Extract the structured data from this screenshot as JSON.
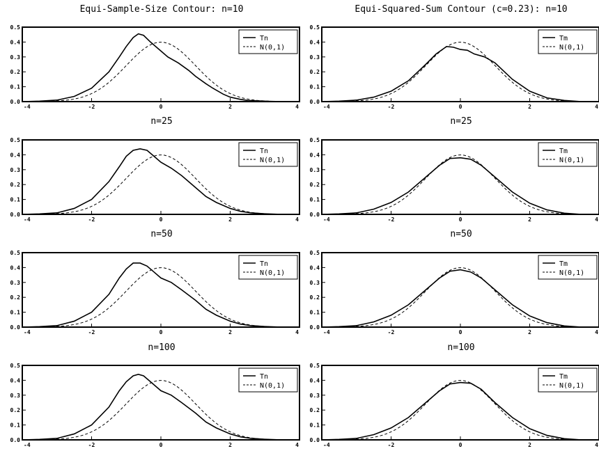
{
  "colors": {
    "background": "#ffffff",
    "ink": "#000000"
  },
  "chart_data": [
    {
      "type": "line",
      "title": "Equi-Sample-Size Contour: n=10",
      "xlim": [
        -4,
        4
      ],
      "ylim": [
        0,
        0.5
      ],
      "xticks": [
        "-4",
        "-2",
        "0",
        "2",
        "4"
      ],
      "yticks": [
        "0.0",
        "0.1",
        "0.2",
        "0.3",
        "0.4",
        "0.5"
      ],
      "legend": [
        "Tn",
        "N(0,1)"
      ],
      "legend_position": "top-right",
      "grid": false,
      "series": [
        {
          "name": "Tn",
          "style": "solid",
          "x": [
            -4,
            -3.5,
            -3,
            -2.5,
            -2,
            -1.5,
            -1.2,
            -1,
            -0.8,
            -0.65,
            -0.5,
            -0.3,
            -0.1,
            0,
            0.2,
            0.5,
            0.8,
            1,
            1.3,
            1.5,
            1.8,
            2,
            2.3,
            2.5,
            3,
            3.5
          ],
          "y": [
            0.0,
            0.003,
            0.01,
            0.035,
            0.09,
            0.2,
            0.3,
            0.37,
            0.43,
            0.455,
            0.445,
            0.4,
            0.36,
            0.34,
            0.3,
            0.26,
            0.21,
            0.17,
            0.12,
            0.09,
            0.05,
            0.03,
            0.015,
            0.008,
            0.003,
            0.0
          ]
        },
        {
          "name": "N(0,1)",
          "style": "dashed",
          "x_range": [
            -4,
            4
          ],
          "function": "standard-normal-pdf"
        }
      ]
    },
    {
      "type": "line",
      "title": "Equi-Squared-Sum Contour (c=0.23): n=10",
      "xlim": [
        -4,
        4
      ],
      "ylim": [
        0,
        0.5
      ],
      "xticks": [
        "-4",
        "-2",
        "0",
        "2",
        "4"
      ],
      "yticks": [
        "0.0",
        "0.1",
        "0.2",
        "0.3",
        "0.4",
        "0.5"
      ],
      "legend": [
        "Tm",
        "N(0,1)"
      ],
      "legend_position": "top-right",
      "grid": false,
      "series": [
        {
          "name": "Tm",
          "style": "solid",
          "x": [
            -4,
            -3.5,
            -3,
            -2.5,
            -2,
            -1.5,
            -1,
            -0.7,
            -0.4,
            -0.2,
            0,
            0.2,
            0.4,
            0.7,
            1,
            1.5,
            2,
            2.5,
            3,
            3.5
          ],
          "y": [
            0.0,
            0.003,
            0.01,
            0.03,
            0.07,
            0.14,
            0.25,
            0.32,
            0.37,
            0.365,
            0.35,
            0.345,
            0.32,
            0.3,
            0.26,
            0.15,
            0.07,
            0.025,
            0.008,
            0.0
          ]
        },
        {
          "name": "N(0,1)",
          "style": "dashed",
          "x_range": [
            -4,
            4
          ],
          "function": "standard-normal-pdf"
        }
      ]
    },
    {
      "type": "line",
      "title": "n=25",
      "xlim": [
        -4,
        4
      ],
      "ylim": [
        0,
        0.5
      ],
      "xticks": [
        "-4",
        "-2",
        "0",
        "2",
        "4"
      ],
      "yticks": [
        "0.0",
        "0.1",
        "0.2",
        "0.3",
        "0.4",
        "0.5"
      ],
      "legend": [
        "Tn",
        "N(0,1)"
      ],
      "legend_position": "top-right",
      "grid": false,
      "series": [
        {
          "name": "Tn",
          "style": "solid",
          "x": [
            -4,
            -3.5,
            -3,
            -2.5,
            -2,
            -1.5,
            -1.2,
            -1,
            -0.8,
            -0.6,
            -0.4,
            -0.2,
            0,
            0.3,
            0.6,
            1,
            1.3,
            1.6,
            2,
            2.3,
            2.6,
            3,
            3.5
          ],
          "y": [
            0.0,
            0.003,
            0.01,
            0.04,
            0.1,
            0.22,
            0.32,
            0.39,
            0.43,
            0.44,
            0.43,
            0.39,
            0.35,
            0.31,
            0.26,
            0.18,
            0.12,
            0.08,
            0.04,
            0.02,
            0.01,
            0.004,
            0.0
          ]
        },
        {
          "name": "N(0,1)",
          "style": "dashed",
          "x_range": [
            -4,
            4
          ],
          "function": "standard-normal-pdf"
        }
      ]
    },
    {
      "type": "line",
      "title": "n=25",
      "xlim": [
        -4,
        4
      ],
      "ylim": [
        0,
        0.5
      ],
      "xticks": [
        "-4",
        "-2",
        "0",
        "2",
        "4"
      ],
      "yticks": [
        "0.0",
        "0.1",
        "0.2",
        "0.3",
        "0.4",
        "0.5"
      ],
      "legend": [
        "Tm",
        "N(0,1)"
      ],
      "legend_position": "top-right",
      "grid": false,
      "series": [
        {
          "name": "Tm",
          "style": "solid",
          "x": [
            -4,
            -3.5,
            -3,
            -2.5,
            -2,
            -1.5,
            -1,
            -0.6,
            -0.3,
            0,
            0.3,
            0.6,
            1,
            1.5,
            2,
            2.5,
            3,
            3.5
          ],
          "y": [
            0.0,
            0.003,
            0.01,
            0.035,
            0.08,
            0.15,
            0.25,
            0.33,
            0.375,
            0.38,
            0.37,
            0.33,
            0.25,
            0.15,
            0.075,
            0.03,
            0.008,
            0.0
          ]
        },
        {
          "name": "N(0,1)",
          "style": "dashed",
          "x_range": [
            -4,
            4
          ],
          "function": "standard-normal-pdf"
        }
      ]
    },
    {
      "type": "line",
      "title": "n=50",
      "xlim": [
        -4,
        4
      ],
      "ylim": [
        0,
        0.5
      ],
      "xticks": [
        "-4",
        "-2",
        "0",
        "2",
        "4"
      ],
      "yticks": [
        "0.0",
        "0.1",
        "0.2",
        "0.3",
        "0.4",
        "0.5"
      ],
      "legend": [
        "Tn",
        "N(0,1)"
      ],
      "legend_position": "top-right",
      "grid": false,
      "series": [
        {
          "name": "Tn",
          "style": "solid",
          "x": [
            -4,
            -3.5,
            -3,
            -2.5,
            -2,
            -1.5,
            -1.2,
            -1,
            -0.8,
            -0.6,
            -0.4,
            -0.2,
            0,
            0.3,
            0.6,
            1,
            1.3,
            1.6,
            2,
            2.3,
            2.6,
            3,
            3.5
          ],
          "y": [
            0.0,
            0.003,
            0.01,
            0.04,
            0.1,
            0.22,
            0.33,
            0.39,
            0.43,
            0.43,
            0.41,
            0.37,
            0.33,
            0.3,
            0.25,
            0.18,
            0.12,
            0.08,
            0.04,
            0.02,
            0.01,
            0.004,
            0.0
          ]
        },
        {
          "name": "N(0,1)",
          "style": "dashed",
          "x_range": [
            -4,
            4
          ],
          "function": "standard-normal-pdf"
        }
      ]
    },
    {
      "type": "line",
      "title": "n=50",
      "xlim": [
        -4,
        4
      ],
      "ylim": [
        0,
        0.5
      ],
      "xticks": [
        "-4",
        "-2",
        "0",
        "2",
        "4"
      ],
      "yticks": [
        "0.0",
        "0.1",
        "0.2",
        "0.3",
        "0.4",
        "0.5"
      ],
      "legend": [
        "Tm",
        "N(0,1)"
      ],
      "legend_position": "top-right",
      "grid": false,
      "series": [
        {
          "name": "Tm",
          "style": "solid",
          "x": [
            -4,
            -3.5,
            -3,
            -2.5,
            -2,
            -1.5,
            -1,
            -0.6,
            -0.3,
            0,
            0.3,
            0.6,
            1,
            1.5,
            2,
            2.5,
            3,
            3.5
          ],
          "y": [
            0.0,
            0.003,
            0.01,
            0.035,
            0.08,
            0.15,
            0.25,
            0.33,
            0.375,
            0.385,
            0.37,
            0.33,
            0.25,
            0.15,
            0.075,
            0.03,
            0.008,
            0.0
          ]
        },
        {
          "name": "N(0,1)",
          "style": "dashed",
          "x_range": [
            -4,
            4
          ],
          "function": "standard-normal-pdf"
        }
      ]
    },
    {
      "type": "line",
      "title": "n=100",
      "xlim": [
        -4,
        4
      ],
      "ylim": [
        0,
        0.5
      ],
      "xticks": [
        "-4",
        "-2",
        "0",
        "2",
        "4"
      ],
      "yticks": [
        "0.0",
        "0.1",
        "0.2",
        "0.3",
        "0.4",
        "0.5"
      ],
      "legend": [
        "Tn",
        "N(0,1)"
      ],
      "legend_position": "top-right",
      "grid": false,
      "series": [
        {
          "name": "Tn",
          "style": "solid",
          "x": [
            -4,
            -3.5,
            -3,
            -2.5,
            -2,
            -1.5,
            -1.2,
            -1,
            -0.8,
            -0.65,
            -0.5,
            -0.3,
            -0.1,
            0,
            0.3,
            0.6,
            1,
            1.3,
            1.6,
            2,
            2.3,
            2.6,
            3,
            3.5
          ],
          "y": [
            0.0,
            0.003,
            0.01,
            0.04,
            0.1,
            0.22,
            0.33,
            0.39,
            0.43,
            0.44,
            0.43,
            0.39,
            0.35,
            0.33,
            0.3,
            0.25,
            0.18,
            0.12,
            0.08,
            0.04,
            0.02,
            0.01,
            0.004,
            0.0
          ]
        },
        {
          "name": "N(0,1)",
          "style": "dashed",
          "x_range": [
            -4,
            4
          ],
          "function": "standard-normal-pdf"
        }
      ]
    },
    {
      "type": "line",
      "title": "n=100",
      "xlim": [
        -4,
        4
      ],
      "ylim": [
        0,
        0.5
      ],
      "xticks": [
        "-4",
        "-2",
        "0",
        "2",
        "4"
      ],
      "yticks": [
        "0.0",
        "0.1",
        "0.2",
        "0.3",
        "0.4",
        "0.5"
      ],
      "legend": [
        "Tm",
        "N(0,1)"
      ],
      "legend_position": "top-right",
      "grid": false,
      "series": [
        {
          "name": "Tm",
          "style": "solid",
          "x": [
            -4,
            -3.5,
            -3,
            -2.5,
            -2,
            -1.5,
            -1,
            -0.6,
            -0.3,
            0,
            0.3,
            0.6,
            1,
            1.5,
            2,
            2.5,
            3,
            3.5
          ],
          "y": [
            0.0,
            0.003,
            0.01,
            0.035,
            0.08,
            0.15,
            0.25,
            0.33,
            0.375,
            0.385,
            0.38,
            0.34,
            0.25,
            0.15,
            0.075,
            0.03,
            0.008,
            0.0
          ]
        },
        {
          "name": "N(0,1)",
          "style": "dashed",
          "x_range": [
            -4,
            4
          ],
          "function": "standard-normal-pdf"
        }
      ]
    }
  ]
}
